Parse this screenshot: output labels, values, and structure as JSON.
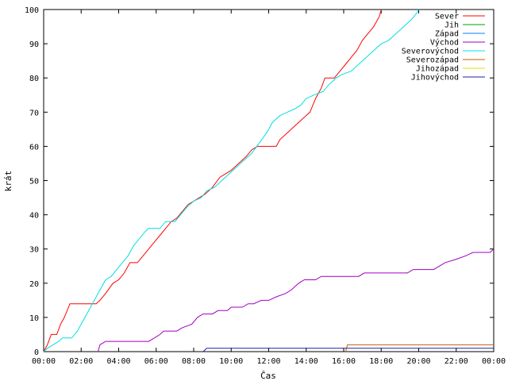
{
  "chart_data": {
    "type": "line",
    "title": "",
    "xlabel": "Čas",
    "ylabel": "krát",
    "ylim": [
      0,
      100
    ],
    "yticks": [
      0,
      10,
      20,
      30,
      40,
      50,
      60,
      70,
      80,
      90,
      100
    ],
    "xlim": [
      0,
      24
    ],
    "xticks": [
      {
        "value": 0,
        "label": "00:00"
      },
      {
        "value": 2,
        "label": "02:00"
      },
      {
        "value": 4,
        "label": "04:00"
      },
      {
        "value": 6,
        "label": "06:00"
      },
      {
        "value": 8,
        "label": "08:00"
      },
      {
        "value": 10,
        "label": "10:00"
      },
      {
        "value": 12,
        "label": "12:00"
      },
      {
        "value": 14,
        "label": "14:00"
      },
      {
        "value": 16,
        "label": "16:00"
      },
      {
        "value": 18,
        "label": "18:00"
      },
      {
        "value": 20,
        "label": "20:00"
      },
      {
        "value": 22,
        "label": "22:00"
      },
      {
        "value": 24,
        "label": "00:00"
      }
    ],
    "grid": false,
    "legend_position": "top-right",
    "series": [
      {
        "name": "Sever",
        "color": "#ff0000",
        "points": [
          [
            0,
            0
          ],
          [
            0.2,
            2
          ],
          [
            0.4,
            5
          ],
          [
            0.7,
            5
          ],
          [
            0.9,
            8
          ],
          [
            1.1,
            10
          ],
          [
            1.4,
            14
          ],
          [
            2.8,
            14
          ],
          [
            3.0,
            15
          ],
          [
            3.3,
            17
          ],
          [
            3.7,
            20
          ],
          [
            4.0,
            21
          ],
          [
            4.3,
            23
          ],
          [
            4.6,
            26
          ],
          [
            5.0,
            26
          ],
          [
            5.3,
            28
          ],
          [
            5.6,
            30
          ],
          [
            5.9,
            32
          ],
          [
            6.2,
            34
          ],
          [
            6.5,
            36
          ],
          [
            6.8,
            38
          ],
          [
            7.1,
            39
          ],
          [
            7.4,
            41
          ],
          [
            7.7,
            43
          ],
          [
            8.0,
            44
          ],
          [
            8.3,
            45
          ],
          [
            8.6,
            46
          ],
          [
            9.0,
            48
          ],
          [
            9.4,
            51
          ],
          [
            9.7,
            52
          ],
          [
            10.0,
            53
          ],
          [
            10.4,
            55
          ],
          [
            10.8,
            57
          ],
          [
            11.1,
            59
          ],
          [
            11.4,
            60
          ],
          [
            12.4,
            60
          ],
          [
            12.6,
            62
          ],
          [
            13.0,
            64
          ],
          [
            13.4,
            66
          ],
          [
            13.8,
            68
          ],
          [
            14.2,
            70
          ],
          [
            14.5,
            74
          ],
          [
            14.8,
            77
          ],
          [
            15.0,
            80
          ],
          [
            15.5,
            80
          ],
          [
            15.8,
            82
          ],
          [
            16.1,
            84
          ],
          [
            16.4,
            86
          ],
          [
            16.7,
            88
          ],
          [
            17.0,
            91
          ],
          [
            17.3,
            93
          ],
          [
            17.6,
            95
          ],
          [
            17.9,
            98
          ],
          [
            18.0,
            100
          ]
        ]
      },
      {
        "name": "Jih",
        "color": "#00a000",
        "points": []
      },
      {
        "name": "Západ",
        "color": "#0080ff",
        "points": []
      },
      {
        "name": "Východ",
        "color": "#a000c0",
        "points": [
          [
            2.9,
            0
          ],
          [
            3.0,
            2
          ],
          [
            3.3,
            3
          ],
          [
            5.6,
            3
          ],
          [
            5.9,
            4
          ],
          [
            6.2,
            5
          ],
          [
            6.4,
            6
          ],
          [
            7.1,
            6
          ],
          [
            7.4,
            7
          ],
          [
            7.9,
            8
          ],
          [
            8.2,
            10
          ],
          [
            8.5,
            11
          ],
          [
            9.0,
            11
          ],
          [
            9.3,
            12
          ],
          [
            9.8,
            12
          ],
          [
            10.0,
            13
          ],
          [
            10.6,
            13
          ],
          [
            10.9,
            14
          ],
          [
            11.2,
            14
          ],
          [
            11.6,
            15
          ],
          [
            12.0,
            15
          ],
          [
            12.4,
            16
          ],
          [
            12.9,
            17
          ],
          [
            13.2,
            18
          ],
          [
            13.6,
            20
          ],
          [
            13.9,
            21
          ],
          [
            14.5,
            21
          ],
          [
            14.8,
            22
          ],
          [
            16.8,
            22
          ],
          [
            17.1,
            23
          ],
          [
            19.4,
            23
          ],
          [
            19.7,
            24
          ],
          [
            20.8,
            24
          ],
          [
            21.1,
            25
          ],
          [
            21.4,
            26
          ],
          [
            22.0,
            27
          ],
          [
            22.5,
            28
          ],
          [
            22.9,
            29
          ],
          [
            23.8,
            29
          ],
          [
            24.0,
            30
          ]
        ]
      },
      {
        "name": "Severovýchod",
        "color": "#00e0e0",
        "points": [
          [
            0,
            0
          ],
          [
            0.2,
            1
          ],
          [
            0.5,
            2
          ],
          [
            0.8,
            3
          ],
          [
            1.0,
            4
          ],
          [
            1.5,
            4
          ],
          [
            1.8,
            6
          ],
          [
            2.1,
            9
          ],
          [
            2.4,
            12
          ],
          [
            2.7,
            15
          ],
          [
            3.0,
            18
          ],
          [
            3.3,
            21
          ],
          [
            3.6,
            22
          ],
          [
            3.9,
            24
          ],
          [
            4.2,
            26
          ],
          [
            4.5,
            28
          ],
          [
            4.8,
            31
          ],
          [
            5.1,
            33
          ],
          [
            5.4,
            35
          ],
          [
            5.6,
            36
          ],
          [
            6.2,
            36
          ],
          [
            6.5,
            38
          ],
          [
            7.0,
            38
          ],
          [
            7.3,
            40
          ],
          [
            7.6,
            42
          ],
          [
            8.0,
            44
          ],
          [
            8.4,
            45
          ],
          [
            8.7,
            47
          ],
          [
            9.1,
            48
          ],
          [
            9.5,
            50
          ],
          [
            9.9,
            52
          ],
          [
            10.3,
            54
          ],
          [
            10.7,
            56
          ],
          [
            11.1,
            58
          ],
          [
            11.5,
            61
          ],
          [
            11.9,
            64
          ],
          [
            12.2,
            67
          ],
          [
            12.6,
            69
          ],
          [
            13.0,
            70
          ],
          [
            13.4,
            71
          ],
          [
            13.7,
            72
          ],
          [
            14.0,
            74
          ],
          [
            14.4,
            75
          ],
          [
            14.9,
            76
          ],
          [
            15.2,
            78
          ],
          [
            15.6,
            80
          ],
          [
            15.9,
            81
          ],
          [
            16.4,
            82
          ],
          [
            16.8,
            84
          ],
          [
            17.2,
            86
          ],
          [
            17.6,
            88
          ],
          [
            18.0,
            90
          ],
          [
            18.4,
            91
          ],
          [
            18.8,
            93
          ],
          [
            19.2,
            95
          ],
          [
            19.6,
            97
          ],
          [
            19.9,
            99
          ],
          [
            20.0,
            100
          ]
        ]
      },
      {
        "name": "Severozápad",
        "color": "#c06000",
        "points": [
          [
            16.1,
            0
          ],
          [
            16.2,
            2
          ],
          [
            24.0,
            2
          ]
        ]
      },
      {
        "name": "Jihozápad",
        "color": "#e0e000",
        "points": []
      },
      {
        "name": "Jihovýchod",
        "color": "#2020a0",
        "points": [
          [
            8.5,
            0
          ],
          [
            8.7,
            1
          ],
          [
            24.0,
            1
          ]
        ]
      }
    ]
  }
}
